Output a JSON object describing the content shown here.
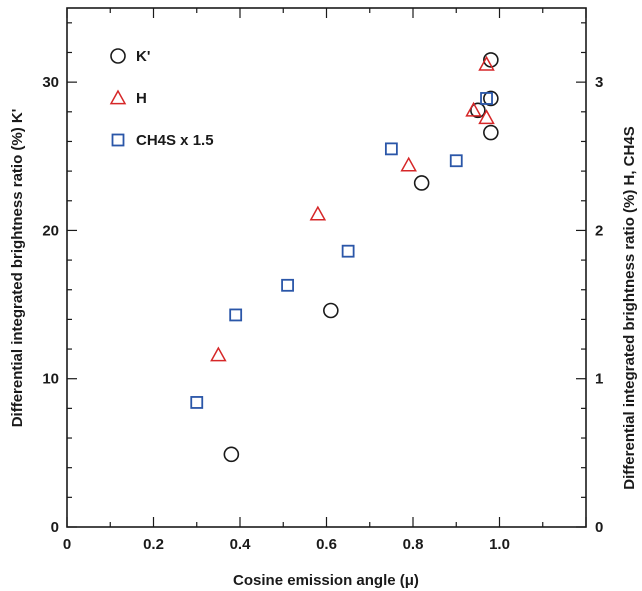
{
  "chart_data": {
    "type": "scatter",
    "title": "",
    "xlabel": "Cosine emission angle (μ)",
    "ylabel_left": "Differential integrated brightness ratio (%)  K'",
    "ylabel_right": "Differential integrated brightness ratio (%)  H, CH4S",
    "xlim": [
      0,
      1.2
    ],
    "ylim_left": [
      0,
      35
    ],
    "ylim_right": [
      0,
      3.5
    ],
    "x_ticks": [
      0,
      0.2,
      0.4,
      0.6,
      0.8,
      1.0
    ],
    "x_tick_labels": [
      "0",
      "0.2",
      "0.4",
      "0.6",
      "0.8",
      "1.0"
    ],
    "y_left_ticks": [
      0,
      10,
      20,
      30
    ],
    "y_left_tick_labels": [
      "0",
      "10",
      "20",
      "30"
    ],
    "y_right_ticks": [
      0,
      1,
      2,
      3
    ],
    "y_right_tick_labels": [
      "0",
      "1",
      "2",
      "3"
    ],
    "grid": false,
    "legend_position": "top-left",
    "series": [
      {
        "name": "K'",
        "axis": "left",
        "marker": "circle",
        "color": "#1a1a1a",
        "points": [
          {
            "x": 0.38,
            "y": 4.9
          },
          {
            "x": 0.61,
            "y": 14.6
          },
          {
            "x": 0.82,
            "y": 23.2
          },
          {
            "x": 0.95,
            "y": 28.1
          },
          {
            "x": 0.98,
            "y": 28.9
          },
          {
            "x": 0.98,
            "y": 26.6
          },
          {
            "x": 0.98,
            "y": 31.5
          }
        ]
      },
      {
        "name": "H",
        "axis": "right",
        "marker": "triangle",
        "color": "#d62728",
        "points": [
          {
            "x": 0.35,
            "y": 1.16
          },
          {
            "x": 0.58,
            "y": 2.11
          },
          {
            "x": 0.79,
            "y": 2.44
          },
          {
            "x": 0.94,
            "y": 2.81
          },
          {
            "x": 0.97,
            "y": 2.76
          },
          {
            "x": 0.97,
            "y": 3.12
          }
        ]
      },
      {
        "name": "CH4S x 1.5",
        "axis": "right",
        "marker": "square",
        "color": "#2a56a8",
        "points": [
          {
            "x": 0.3,
            "y": 0.84
          },
          {
            "x": 0.39,
            "y": 1.43
          },
          {
            "x": 0.51,
            "y": 1.63
          },
          {
            "x": 0.65,
            "y": 1.86
          },
          {
            "x": 0.75,
            "y": 2.55
          },
          {
            "x": 0.9,
            "y": 2.47
          },
          {
            "x": 0.97,
            "y": 2.89
          }
        ]
      }
    ]
  }
}
